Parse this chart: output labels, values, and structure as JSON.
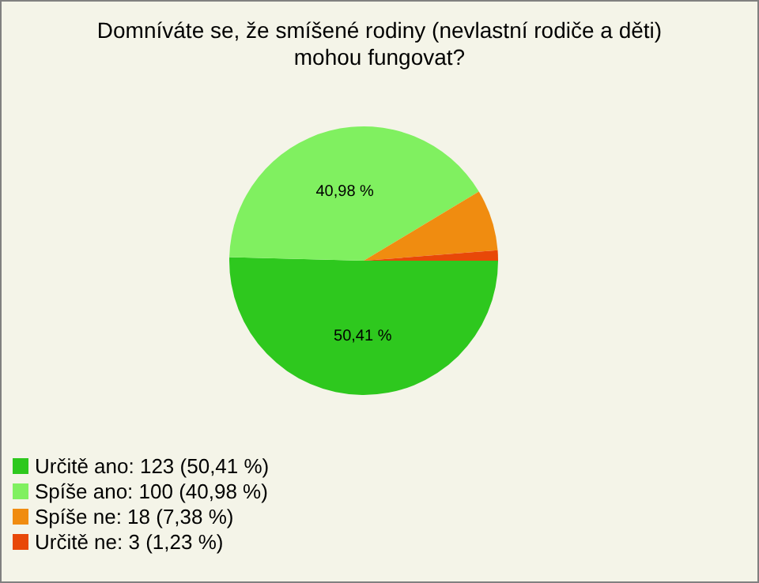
{
  "chart_data": {
    "type": "pie",
    "title": "Domníváte se, že smíšené rodiny (nevlastní rodiče a děti) mohou fungovat?",
    "categories": [
      "Určitě ano: 123 (50,41 %)",
      "Spíše ano: 100 (40,98 %)",
      "Spíše ne: 18 (7,38 %)",
      "Určitě ne: 3 (1,23 %)"
    ],
    "values": [
      50.41,
      40.98,
      7.38,
      1.23
    ],
    "colors": [
      "#2ec81e",
      "#80f060",
      "#f08c10",
      "#e84808"
    ],
    "value_labels": [
      "50,41 %",
      "40,98 %",
      null,
      null
    ],
    "legend": "bottom left"
  }
}
